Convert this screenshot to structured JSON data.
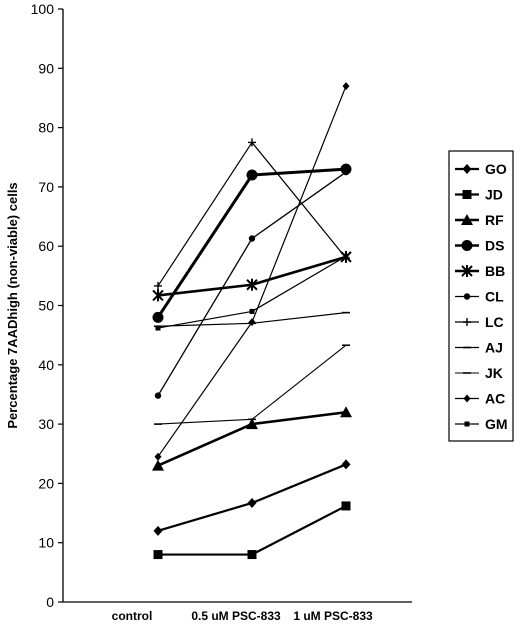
{
  "chart_data": {
    "type": "line",
    "title": "",
    "xlabel": "",
    "ylabel": "Percentage 7AADhigh (non-viable) cells",
    "ylim": [
      0,
      100
    ],
    "yticks": [
      0,
      10,
      20,
      30,
      40,
      50,
      60,
      70,
      80,
      90,
      100
    ],
    "categories": [
      "control",
      "0.5 uM PSC-833",
      "1 uM PSC-833"
    ],
    "grid": false,
    "legend_position": "right",
    "series": [
      {
        "name": "GO",
        "marker": "diamond",
        "values": [
          12,
          16.7,
          23.2
        ]
      },
      {
        "name": "JD",
        "marker": "square",
        "values": [
          8,
          8,
          16.2
        ]
      },
      {
        "name": "RF",
        "marker": "triangle",
        "values": [
          23,
          30,
          32
        ]
      },
      {
        "name": "DS",
        "marker": "circle",
        "values": [
          48,
          72,
          73
        ]
      },
      {
        "name": "BB",
        "marker": "star",
        "values": [
          51.7,
          53.5,
          58.2
        ]
      },
      {
        "name": "CL",
        "marker": "dot",
        "values": [
          34.8,
          61.3,
          72.5
        ]
      },
      {
        "name": "LC",
        "marker": "plus",
        "values": [
          53.3,
          77.5,
          58
        ]
      },
      {
        "name": "AJ",
        "marker": "dash",
        "values": [
          46.5,
          47,
          48.8
        ]
      },
      {
        "name": "JK",
        "marker": "dash",
        "values": [
          30,
          30.8,
          43.3
        ]
      },
      {
        "name": "AC",
        "marker": "diamond-small",
        "values": [
          24.5,
          47.2,
          87
        ]
      },
      {
        "name": "GM",
        "marker": "square-small",
        "values": [
          46.2,
          49,
          58.3
        ]
      }
    ]
  }
}
